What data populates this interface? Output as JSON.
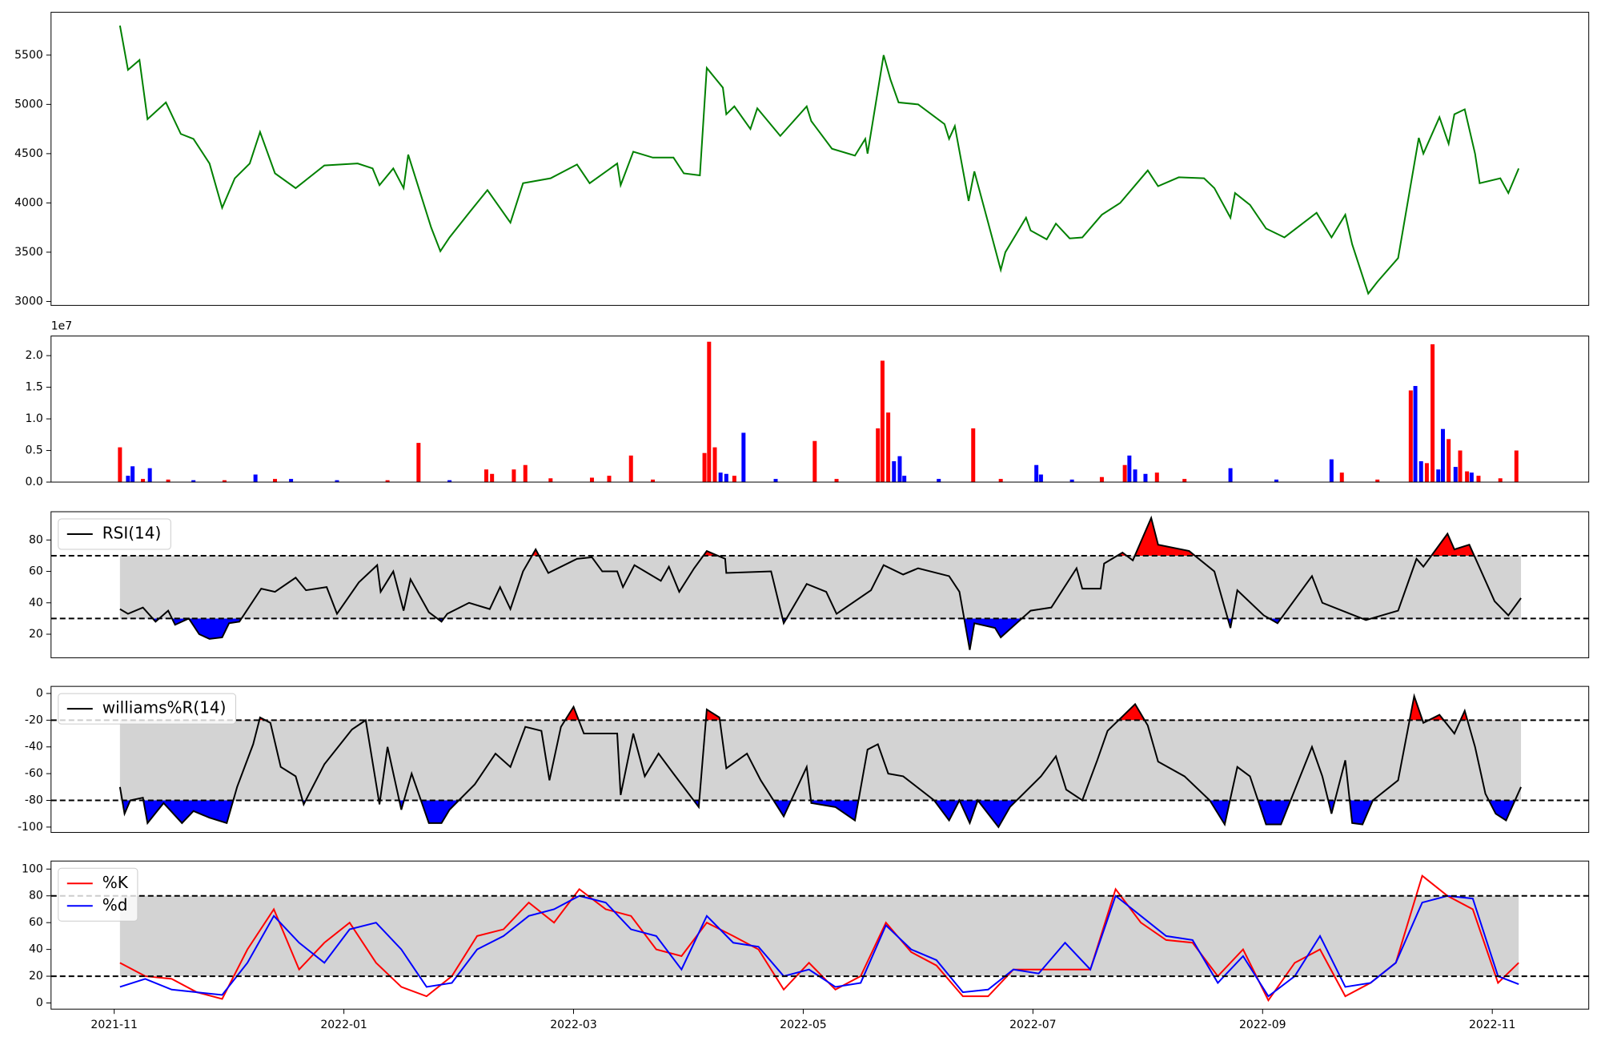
{
  "chart_data": [
    {
      "type": "line",
      "color": "green",
      "xlim": [
        -0.55,
        12.84
      ],
      "ylim": [
        2960,
        5935
      ],
      "yticks": [
        3000,
        3500,
        4000,
        4500,
        5000,
        5500
      ],
      "x": [
        0.05,
        0.12,
        0.22,
        0.29,
        0.45,
        0.58,
        0.69,
        0.83,
        0.94,
        1.05,
        1.18,
        1.27,
        1.4,
        1.58,
        1.83,
        2.12,
        2.25,
        2.31,
        2.43,
        2.52,
        2.56,
        2.76,
        2.84,
        2.92,
        3.09,
        3.25,
        3.45,
        3.56,
        3.8,
        4.03,
        4.14,
        4.38,
        4.41,
        4.52,
        4.69,
        4.87,
        4.96,
        5.1,
        5.16,
        5.3,
        5.33,
        5.4,
        5.54,
        5.6,
        5.8,
        6.03,
        6.07,
        6.25,
        6.45,
        6.54,
        6.56,
        6.7,
        6.76,
        6.83,
        7.0,
        7.23,
        7.27,
        7.32,
        7.44,
        7.49,
        7.61,
        7.72,
        7.76,
        7.94,
        7.98,
        8.12,
        8.2,
        8.32,
        8.43,
        8.6,
        8.76,
        9.0,
        9.09,
        9.27,
        9.49,
        9.58,
        9.72,
        9.76,
        9.89,
        10.03,
        10.19,
        10.47,
        10.6,
        10.72,
        10.78,
        10.92,
        11.0,
        11.18,
        11.36,
        11.4,
        11.54,
        11.62,
        11.67,
        11.76,
        11.85,
        11.89,
        12.07,
        12.14,
        12.23
      ],
      "values": [
        5800,
        5350,
        5450,
        4850,
        5020,
        4700,
        4650,
        4400,
        3950,
        4250,
        4400,
        4720,
        4300,
        4150,
        4380,
        4400,
        4350,
        4180,
        4350,
        4150,
        4490,
        3750,
        3510,
        3650,
        3900,
        4130,
        3800,
        4200,
        4250,
        4390,
        4200,
        4400,
        4180,
        4520,
        4460,
        4460,
        4300,
        4280,
        5370,
        5170,
        4900,
        4980,
        4750,
        4960,
        4680,
        4980,
        4830,
        4550,
        4480,
        4650,
        4500,
        5500,
        5250,
        5020,
        5000,
        4800,
        4650,
        4780,
        4020,
        4320,
        3800,
        3320,
        3500,
        3850,
        3720,
        3630,
        3790,
        3640,
        3650,
        3880,
        4000,
        4330,
        4170,
        4260,
        4250,
        4150,
        3850,
        4100,
        3980,
        3740,
        3650,
        3900,
        3650,
        3880,
        3580,
        3080,
        3200,
        3440,
        4660,
        4500,
        4870,
        4600,
        4900,
        4950,
        4500,
        4200,
        4250,
        4100,
        4350
      ]
    },
    {
      "type": "bar",
      "xlim": [
        -0.55,
        12.84
      ],
      "ylim": [
        0,
        2.31
      ],
      "offset_label": "1e7",
      "yticks": [
        {
          "value": 0,
          "label": "0.0"
        },
        0.5,
        {
          "value": 1,
          "label": "1.0"
        },
        1.5,
        {
          "value": 2,
          "label": "2.0"
        }
      ],
      "x": [
        0.05,
        0.12,
        0.16,
        0.25,
        0.31,
        0.47,
        0.69,
        0.96,
        1.23,
        1.4,
        1.54,
        1.94,
        2.38,
        2.65,
        2.92,
        3.24,
        3.29,
        3.48,
        3.58,
        3.8,
        4.16,
        4.31,
        4.5,
        4.69,
        5.14,
        5.18,
        5.23,
        5.28,
        5.33,
        5.4,
        5.48,
        5.76,
        6.1,
        6.29,
        6.65,
        6.69,
        6.74,
        6.79,
        6.84,
        6.88,
        7.18,
        7.48,
        7.72,
        8.03,
        8.07,
        8.34,
        8.6,
        8.8,
        8.84,
        8.89,
        8.98,
        9.08,
        9.32,
        9.72,
        10.12,
        10.6,
        10.69,
        11.0,
        11.29,
        11.33,
        11.38,
        11.43,
        11.48,
        11.53,
        11.57,
        11.62,
        11.68,
        11.72,
        11.78,
        11.82,
        11.88,
        12.07,
        12.21
      ],
      "values": [
        0.55,
        0.1,
        0.25,
        0.05,
        0.22,
        0.04,
        0.03,
        0.03,
        0.12,
        0.05,
        0.05,
        0.03,
        0.03,
        0.62,
        0.03,
        0.2,
        0.13,
        0.2,
        0.27,
        0.06,
        0.07,
        0.1,
        0.42,
        0.04,
        0.46,
        2.22,
        0.55,
        0.15,
        0.13,
        0.1,
        0.78,
        0.05,
        0.65,
        0.05,
        0.85,
        1.92,
        1.1,
        0.33,
        0.41,
        0.1,
        0.05,
        0.85,
        0.05,
        0.27,
        0.12,
        0.04,
        0.08,
        0.27,
        0.42,
        0.2,
        0.13,
        0.15,
        0.05,
        0.22,
        0.04,
        0.36,
        0.15,
        0.04,
        1.45,
        1.52,
        0.33,
        0.3,
        2.18,
        0.2,
        0.84,
        0.68,
        0.24,
        0.5,
        0.17,
        0.15,
        0.1,
        0.06,
        0.5
      ],
      "colors": [
        "red",
        "blue",
        "blue",
        "red",
        "blue",
        "red",
        "blue",
        "red",
        "blue",
        "red",
        "blue",
        "blue",
        "red",
        "red",
        "blue",
        "red",
        "red",
        "red",
        "red",
        "red",
        "red",
        "red",
        "red",
        "red",
        "red",
        "red",
        "red",
        "blue",
        "blue",
        "red",
        "blue",
        "blue",
        "red",
        "red",
        "red",
        "red",
        "red",
        "blue",
        "blue",
        "blue",
        "blue",
        "red",
        "red",
        "blue",
        "blue",
        "blue",
        "red",
        "red",
        "blue",
        "blue",
        "blue",
        "red",
        "red",
        "blue",
        "blue",
        "blue",
        "red",
        "red",
        "red",
        "blue",
        "blue",
        "red",
        "red",
        "blue",
        "blue",
        "red",
        "blue",
        "red",
        "red",
        "blue",
        "red",
        "red",
        "red"
      ]
    },
    {
      "type": "line",
      "xlim": [
        -0.55,
        12.84
      ],
      "ylim": [
        5,
        98
      ],
      "yticks": [
        20,
        40,
        60,
        80
      ],
      "hlines": [
        30,
        70
      ],
      "band_color": "lightgray",
      "fill": {
        "below": "blue",
        "above": "red"
      },
      "legend": "upper left",
      "x": [
        0.05,
        0.12,
        0.25,
        0.36,
        0.47,
        0.53,
        0.65,
        0.74,
        0.83,
        0.94,
        1.0,
        1.09,
        1.28,
        1.4,
        1.58,
        1.67,
        1.85,
        1.94,
        2.13,
        2.29,
        2.32,
        2.43,
        2.52,
        2.58,
        2.74,
        2.85,
        2.9,
        3.09,
        3.27,
        3.36,
        3.45,
        3.56,
        3.67,
        3.78,
        4.03,
        4.16,
        4.25,
        4.38,
        4.43,
        4.53,
        4.76,
        4.83,
        4.92,
        5.05,
        5.16,
        5.32,
        5.33,
        5.72,
        5.83,
        6.03,
        6.2,
        6.29,
        6.59,
        6.7,
        6.87,
        7.0,
        7.27,
        7.36,
        7.45,
        7.49,
        7.67,
        7.72,
        7.98,
        8.16,
        8.38,
        8.43,
        8.59,
        8.62,
        8.78,
        8.87,
        9.03,
        9.09,
        9.36,
        9.58,
        9.72,
        9.78,
        10.01,
        10.13,
        10.43,
        10.52,
        10.9,
        11.18,
        11.34,
        11.4,
        11.61,
        11.67,
        11.8,
        12.02,
        12.14,
        12.25
      ],
      "series": [
        {
          "name": "RSI(14)",
          "color": "black",
          "values": [
            36,
            33,
            37,
            28,
            35,
            26,
            30,
            20,
            17,
            18,
            27,
            28,
            49,
            47,
            56,
            48,
            50,
            33,
            53,
            64,
            47,
            60,
            35,
            55,
            34,
            28,
            33,
            40,
            36,
            50,
            36,
            60,
            74,
            59,
            68,
            69,
            60,
            60,
            50,
            64,
            54,
            63,
            47,
            62,
            73,
            68,
            59,
            60,
            27,
            52,
            47,
            33,
            48,
            64,
            58,
            62,
            57,
            47,
            10,
            27,
            24,
            18,
            35,
            37,
            62,
            49,
            49,
            65,
            72,
            67,
            94,
            77,
            73,
            60,
            24,
            48,
            32,
            27,
            57,
            40,
            29,
            35,
            68,
            63,
            84,
            74,
            77,
            41,
            32,
            43
          ]
        }
      ]
    },
    {
      "type": "line",
      "xlim": [
        -0.55,
        12.84
      ],
      "ylim": [
        -104,
        5.3
      ],
      "yticks": [
        -100,
        -80,
        -60,
        -40,
        -20,
        0
      ],
      "hlines": [
        -80,
        -20
      ],
      "band_color": "lightgray",
      "fill": {
        "below": "blue",
        "above": "red"
      },
      "legend": "upper left",
      "x": [
        0.05,
        0.09,
        0.14,
        0.25,
        0.29,
        0.43,
        0.59,
        0.69,
        0.83,
        0.98,
        1.07,
        1.21,
        1.27,
        1.36,
        1.45,
        1.58,
        1.65,
        1.83,
        2.07,
        2.19,
        2.31,
        2.38,
        2.5,
        2.59,
        2.74,
        2.85,
        2.92,
        3.14,
        3.32,
        3.45,
        3.58,
        3.72,
        3.79,
        3.89,
        4.0,
        4.09,
        4.38,
        4.41,
        4.52,
        4.62,
        4.74,
        4.87,
        5.09,
        5.16,
        5.27,
        5.33,
        5.51,
        5.63,
        5.83,
        6.03,
        6.07,
        6.28,
        6.45,
        6.56,
        6.65,
        6.74,
        6.87,
        7.14,
        7.27,
        7.36,
        7.45,
        7.52,
        7.7,
        7.8,
        8.07,
        8.2,
        8.29,
        8.43,
        8.56,
        8.65,
        8.89,
        9.0,
        9.09,
        9.32,
        9.54,
        9.67,
        9.78,
        9.89,
        10.03,
        10.16,
        10.43,
        10.52,
        10.6,
        10.72,
        10.78,
        10.87,
        10.96,
        11.18,
        11.32,
        11.4,
        11.54,
        11.67,
        11.76,
        11.85,
        11.94,
        12.03,
        12.12,
        12.25
      ],
      "series": [
        {
          "name": "williams%R(14)",
          "color": "black",
          "values": [
            -70,
            -90,
            -80,
            -78,
            -97,
            -82,
            -97,
            -88,
            -93,
            -97,
            -70,
            -38,
            -18,
            -22,
            -55,
            -62,
            -83,
            -53,
            -27,
            -20,
            -83,
            -40,
            -87,
            -60,
            -97,
            -97,
            -87,
            -68,
            -45,
            -55,
            -25,
            -28,
            -65,
            -25,
            -10,
            -30,
            -30,
            -76,
            -30,
            -62,
            -45,
            -60,
            -85,
            -12,
            -18,
            -56,
            -45,
            -65,
            -92,
            -55,
            -82,
            -85,
            -95,
            -42,
            -38,
            -60,
            -62,
            -80,
            -95,
            -80,
            -97,
            -80,
            -100,
            -85,
            -62,
            -47,
            -72,
            -80,
            -50,
            -28,
            -8,
            -24,
            -51,
            -62,
            -80,
            -98,
            -55,
            -62,
            -98,
            -98,
            -40,
            -62,
            -90,
            -50,
            -97,
            -98,
            -80,
            -65,
            -2,
            -22,
            -16,
            -30,
            -13,
            -40,
            -75,
            -90,
            -95,
            -70
          ]
        }
      ]
    },
    {
      "type": "line",
      "xlim": [
        -0.55,
        12.84
      ],
      "ylim": [
        -4.6,
        106
      ],
      "yticks": [
        0,
        20,
        40,
        60,
        80,
        100
      ],
      "hlines": [
        20,
        80
      ],
      "band_color": "lightgray",
      "legend": "upper left",
      "xticks": [
        {
          "value": 0,
          "label": "2021-11"
        },
        {
          "value": 2,
          "label": "2022-01"
        },
        {
          "value": 4,
          "label": "2022-03"
        },
        {
          "value": 6,
          "label": "2022-05"
        },
        {
          "value": 8,
          "label": "2022-07"
        },
        {
          "value": 10,
          "label": "2022-09"
        },
        {
          "value": 12,
          "label": "2022-11"
        }
      ],
      "x": [
        0.05,
        0.27,
        0.5,
        0.72,
        0.94,
        1.16,
        1.39,
        1.61,
        1.83,
        2.05,
        2.28,
        2.5,
        2.72,
        2.94,
        3.16,
        3.39,
        3.61,
        3.83,
        4.05,
        4.28,
        4.5,
        4.72,
        4.94,
        5.16,
        5.39,
        5.61,
        5.83,
        6.05,
        6.28,
        6.5,
        6.72,
        6.94,
        7.16,
        7.39,
        7.61,
        7.83,
        8.05,
        8.28,
        8.5,
        8.72,
        8.94,
        9.16,
        9.39,
        9.61,
        9.83,
        10.05,
        10.28,
        10.5,
        10.72,
        10.94,
        11.16,
        11.39,
        11.61,
        11.83,
        12.05,
        12.23
      ],
      "series": [
        {
          "name": "%K",
          "color": "red",
          "values": [
            30,
            20,
            18,
            8,
            3,
            40,
            70,
            25,
            45,
            60,
            30,
            12,
            5,
            20,
            50,
            55,
            75,
            60,
            85,
            70,
            65,
            40,
            35,
            60,
            50,
            40,
            10,
            30,
            10,
            20,
            60,
            38,
            28,
            5,
            5,
            25,
            25,
            25,
            25,
            85,
            60,
            47,
            45,
            20,
            40,
            2,
            30,
            40,
            5,
            15,
            30,
            95,
            80,
            70,
            15,
            30
          ]
        },
        {
          "name": "%d",
          "color": "blue",
          "values": [
            12,
            18,
            10,
            8,
            6,
            30,
            65,
            45,
            30,
            55,
            60,
            40,
            12,
            15,
            40,
            50,
            65,
            70,
            80,
            75,
            55,
            50,
            25,
            65,
            45,
            42,
            20,
            25,
            12,
            15,
            58,
            40,
            32,
            8,
            10,
            25,
            22,
            45,
            25,
            80,
            65,
            50,
            47,
            15,
            35,
            5,
            20,
            50,
            12,
            15,
            30,
            75,
            80,
            78,
            20,
            14
          ]
        }
      ]
    }
  ]
}
